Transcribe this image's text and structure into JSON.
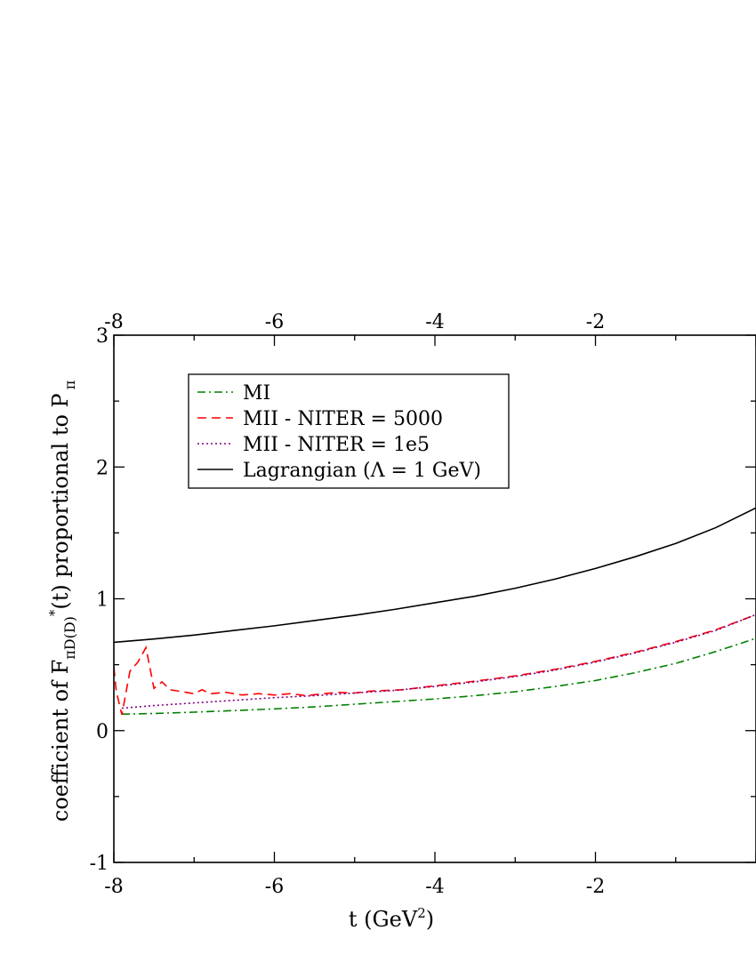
{
  "chart_data": {
    "type": "line",
    "xlabel": "t (GeV",
    "xlabel_sup": "2",
    "xlabel_end": ")",
    "ylabel": {
      "prefix": "coefficient of F",
      "sub_main": "πD(D)",
      "sup": "*",
      "suffix": "(t) proportional to P",
      "sub_end": "π"
    },
    "xlim": [
      -8,
      0
    ],
    "ylim": [
      -1,
      3
    ],
    "x_ticks": [
      -8,
      -6,
      -4,
      -2
    ],
    "x_tick_labels": [
      "-8",
      "-6",
      "-4",
      "-2"
    ],
    "y_ticks": [
      -1,
      0,
      1,
      2,
      3
    ],
    "y_tick_labels": [
      "-1",
      "0",
      "1",
      "2",
      "3"
    ],
    "top_axis_tick_labels": [
      "-8",
      "-6",
      "-4",
      "-2"
    ],
    "legend_position": "top-left",
    "series": [
      {
        "name": "MI",
        "color": "#008000",
        "style": "dashdot",
        "x": [
          -7.9,
          -7.5,
          -7,
          -6.5,
          -6,
          -5.5,
          -5,
          -4.5,
          -4,
          -3.5,
          -3,
          -2.5,
          -2,
          -1.5,
          -1,
          -0.5,
          0
        ],
        "y": [
          0.125,
          0.13,
          0.14,
          0.152,
          0.165,
          0.18,
          0.2,
          0.22,
          0.24,
          0.265,
          0.295,
          0.335,
          0.38,
          0.44,
          0.51,
          0.6,
          0.7
        ]
      },
      {
        "name": "MII - NITER = 5000",
        "color": "#ff0000",
        "style": "dashed",
        "x": [
          -8.0,
          -7.97,
          -7.9,
          -7.8,
          -7.7,
          -7.6,
          -7.5,
          -7.4,
          -7.3,
          -7.2,
          -7.0,
          -6.9,
          -6.8,
          -6.6,
          -6.4,
          -6.2,
          -6.0,
          -5.8,
          -5.6,
          -5.4,
          -5.2,
          -5.0,
          -4.8,
          -4.6,
          -4.4,
          -4.2,
          -4.0,
          -3.5,
          -3.0,
          -2.5,
          -2.0,
          -1.5,
          -1.0,
          -0.5,
          0
        ],
        "y": [
          0.48,
          0.3,
          0.12,
          0.45,
          0.52,
          0.63,
          0.32,
          0.37,
          0.31,
          0.3,
          0.28,
          0.31,
          0.28,
          0.29,
          0.27,
          0.28,
          0.27,
          0.28,
          0.265,
          0.28,
          0.29,
          0.285,
          0.3,
          0.305,
          0.31,
          0.325,
          0.34,
          0.375,
          0.415,
          0.465,
          0.525,
          0.595,
          0.675,
          0.765,
          0.88
        ]
      },
      {
        "name": "MII - NITER = 1e5",
        "color": "#800080",
        "style": "dotted",
        "x": [
          -7.9,
          -7.5,
          -7,
          -6.5,
          -6,
          -5.5,
          -5,
          -4.5,
          -4,
          -3.5,
          -3,
          -2.5,
          -2,
          -1.5,
          -1,
          -0.5,
          0
        ],
        "y": [
          0.17,
          0.19,
          0.21,
          0.23,
          0.25,
          0.265,
          0.285,
          0.305,
          0.335,
          0.37,
          0.41,
          0.46,
          0.52,
          0.59,
          0.67,
          0.76,
          0.88
        ]
      },
      {
        "name": "Lagrangian (Λ = 1 GeV)",
        "color": "#000000",
        "style": "solid",
        "x": [
          -8,
          -7.5,
          -7,
          -6.5,
          -6,
          -5.5,
          -5,
          -4.5,
          -4,
          -3.5,
          -3,
          -2.5,
          -2,
          -1.5,
          -1,
          -0.5,
          0
        ],
        "y": [
          0.67,
          0.695,
          0.725,
          0.76,
          0.795,
          0.835,
          0.875,
          0.92,
          0.97,
          1.02,
          1.08,
          1.15,
          1.23,
          1.32,
          1.42,
          1.54,
          1.69
        ]
      }
    ]
  }
}
